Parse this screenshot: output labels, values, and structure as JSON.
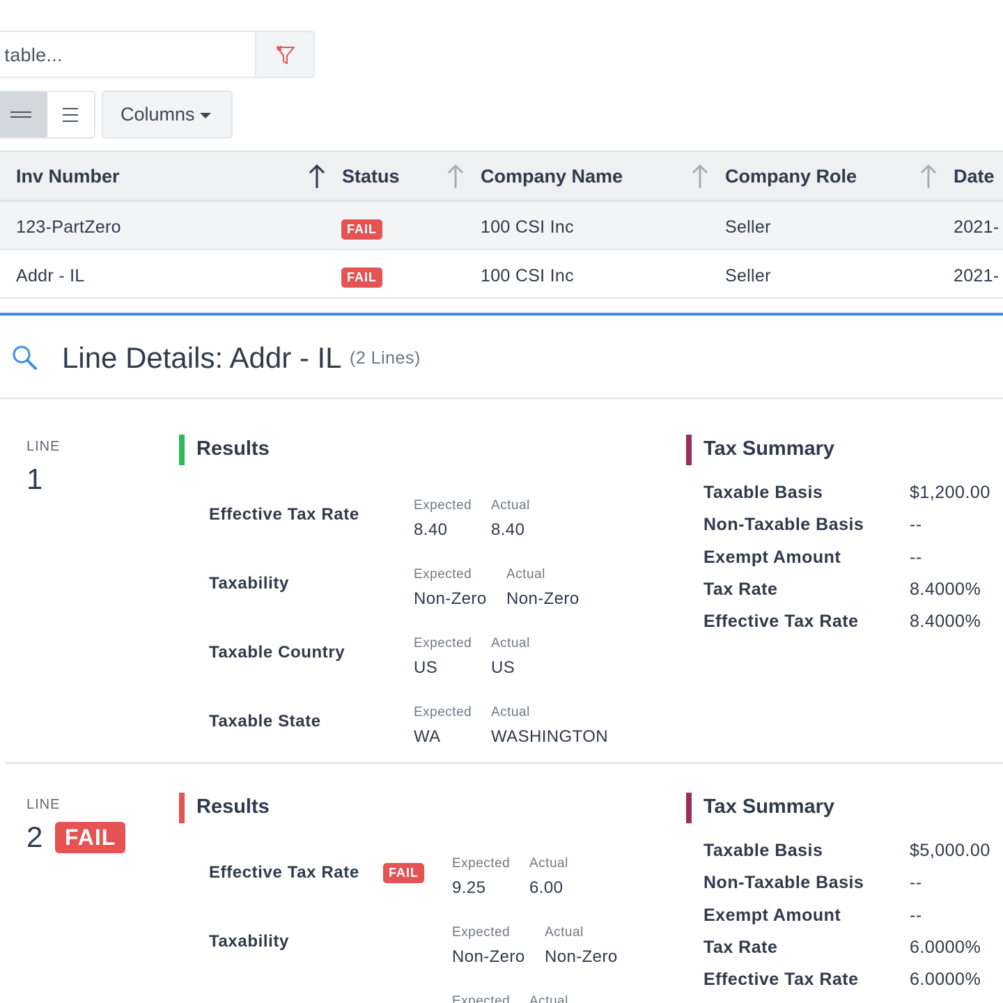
{
  "toolbar": {
    "filter_placeholder": "Filter table...",
    "filter_visible_text": "er table...",
    "columns_label": "Columns",
    "icons": {
      "clear_filter": "filter-clear-icon",
      "density_compact": "density-compact-icon",
      "density_default": "density-default-icon"
    }
  },
  "table": {
    "columns": [
      "Inv Number",
      "Status",
      "Company Name",
      "Company Role",
      "Date"
    ],
    "rows": [
      {
        "inv_number": "123-PartZero",
        "status": "FAIL",
        "company_name": "100 CSI Inc",
        "company_role": "Seller",
        "date": "2021-"
      },
      {
        "inv_number": "Addr - IL",
        "status": "FAIL",
        "company_name": "100 CSI Inc",
        "company_role": "Seller",
        "date": "2021-"
      }
    ]
  },
  "details": {
    "title": "Line Details: Addr - IL",
    "count": "(2 Lines)",
    "line_label": "LINE",
    "expected_label": "Expected",
    "actual_label": "Actual",
    "results_title": "Results",
    "summary_title": "Tax Summary",
    "lines": [
      {
        "number": "1",
        "status": "",
        "results": [
          {
            "field": "Effective Tax Rate",
            "status": "",
            "expected": "8.40",
            "actual": "8.40"
          },
          {
            "field": "Taxability",
            "status": "",
            "expected": "Non-Zero",
            "actual": "Non-Zero"
          },
          {
            "field": "Taxable Country",
            "status": "",
            "expected": "US",
            "actual": "US"
          },
          {
            "field": "Taxable State",
            "status": "",
            "expected": "WA",
            "actual": "WASHINGTON"
          }
        ],
        "summary": [
          {
            "label": "Taxable Basis",
            "value": "$1,200.00"
          },
          {
            "label": "Non-Taxable Basis",
            "value": "--"
          },
          {
            "label": "Exempt Amount",
            "value": "--"
          },
          {
            "label": "Tax Rate",
            "value": "8.4000%"
          },
          {
            "label": "Effective Tax Rate",
            "value": "8.4000%"
          }
        ]
      },
      {
        "number": "2",
        "status": "FAIL",
        "results": [
          {
            "field": "Effective Tax Rate",
            "status": "FAIL",
            "expected": "9.25",
            "actual": "6.00"
          },
          {
            "field": "Taxability",
            "status": "",
            "expected": "Non-Zero",
            "actual": "Non-Zero"
          },
          {
            "field": "",
            "status": "",
            "expected": "",
            "actual": ""
          }
        ],
        "summary": [
          {
            "label": "Taxable Basis",
            "value": "$5,000.00"
          },
          {
            "label": "Non-Taxable Basis",
            "value": "--"
          },
          {
            "label": "Exempt Amount",
            "value": "--"
          },
          {
            "label": "Tax Rate",
            "value": "6.0000%"
          },
          {
            "label": "Effective Tax Rate",
            "value": "6.0000%"
          }
        ]
      }
    ]
  },
  "colors": {
    "fail": "#e55353",
    "pass_bar": "#2eb85c",
    "summary_bar": "#9b2c5e",
    "accent_blue": "#3a8ee6"
  }
}
